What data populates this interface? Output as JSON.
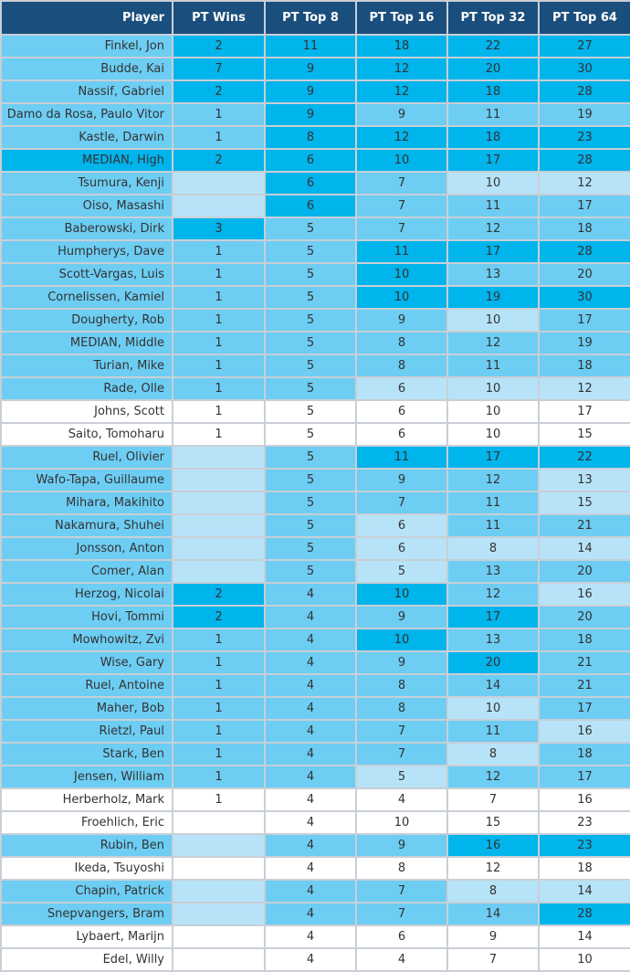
{
  "colors": {
    "header": "#1a4e7c",
    "white": "#ffffff",
    "pale": "#b7e3f8",
    "light": "#6dcdf3",
    "bright": "#00b4ec"
  },
  "header": {
    "player": "Player",
    "wins": "PT Wins",
    "top8": "PT Top 8",
    "top16": "PT Top 16",
    "top32": "PT Top 32",
    "top64": "PT Top 64"
  },
  "rows": [
    {
      "name": "Finkel, Jon",
      "wins": "2",
      "top8": "11",
      "top16": "18",
      "top32": "22",
      "top64": "27",
      "rowlvl": 2,
      "lv": [
        3,
        3,
        3,
        3,
        3
      ]
    },
    {
      "name": "Budde, Kai",
      "wins": "7",
      "top8": "9",
      "top16": "12",
      "top32": "20",
      "top64": "30",
      "rowlvl": 2,
      "lv": [
        3,
        3,
        3,
        3,
        3
      ]
    },
    {
      "name": "Nassif, Gabriel",
      "wins": "2",
      "top8": "9",
      "top16": "12",
      "top32": "18",
      "top64": "28",
      "rowlvl": 2,
      "lv": [
        3,
        3,
        3,
        3,
        3
      ]
    },
    {
      "name": "Damo da Rosa, Paulo Vitor",
      "wins": "1",
      "top8": "9",
      "top16": "9",
      "top32": "11",
      "top64": "19",
      "rowlvl": 2,
      "lv": [
        2,
        3,
        2,
        2,
        2
      ]
    },
    {
      "name": "Kastle, Darwin",
      "wins": "1",
      "top8": "8",
      "top16": "12",
      "top32": "18",
      "top64": "23",
      "rowlvl": 2,
      "lv": [
        2,
        3,
        3,
        3,
        3
      ]
    },
    {
      "name": "MEDIAN, High",
      "wins": "2",
      "top8": "6",
      "top16": "10",
      "top32": "17",
      "top64": "28",
      "rowlvl": 3,
      "lv": [
        3,
        3,
        3,
        3,
        3
      ]
    },
    {
      "name": "Tsumura, Kenji",
      "wins": "",
      "top8": "6",
      "top16": "7",
      "top32": "10",
      "top64": "12",
      "rowlvl": 2,
      "lv": [
        1,
        3,
        2,
        1,
        1
      ]
    },
    {
      "name": "Oiso, Masashi",
      "wins": "",
      "top8": "6",
      "top16": "7",
      "top32": "11",
      "top64": "17",
      "rowlvl": 2,
      "lv": [
        1,
        3,
        2,
        2,
        2
      ]
    },
    {
      "name": "Baberowski, Dirk",
      "wins": "3",
      "top8": "5",
      "top16": "7",
      "top32": "12",
      "top64": "18",
      "rowlvl": 2,
      "lv": [
        3,
        2,
        2,
        2,
        2
      ]
    },
    {
      "name": "Humpherys, Dave",
      "wins": "1",
      "top8": "5",
      "top16": "11",
      "top32": "17",
      "top64": "28",
      "rowlvl": 2,
      "lv": [
        2,
        2,
        3,
        3,
        3
      ]
    },
    {
      "name": "Scott-Vargas, Luis",
      "wins": "1",
      "top8": "5",
      "top16": "10",
      "top32": "13",
      "top64": "20",
      "rowlvl": 2,
      "lv": [
        2,
        2,
        3,
        2,
        2
      ]
    },
    {
      "name": "Cornelissen, Kamiel",
      "wins": "1",
      "top8": "5",
      "top16": "10",
      "top32": "19",
      "top64": "30",
      "rowlvl": 2,
      "lv": [
        2,
        2,
        3,
        3,
        3
      ]
    },
    {
      "name": "Dougherty, Rob",
      "wins": "1",
      "top8": "5",
      "top16": "9",
      "top32": "10",
      "top64": "17",
      "rowlvl": 2,
      "lv": [
        2,
        2,
        2,
        1,
        2
      ]
    },
    {
      "name": "MEDIAN, Middle",
      "wins": "1",
      "top8": "5",
      "top16": "8",
      "top32": "12",
      "top64": "19",
      "rowlvl": 2,
      "lv": [
        2,
        2,
        2,
        2,
        2
      ]
    },
    {
      "name": "Turian, Mike",
      "wins": "1",
      "top8": "5",
      "top16": "8",
      "top32": "11",
      "top64": "18",
      "rowlvl": 2,
      "lv": [
        2,
        2,
        2,
        2,
        2
      ]
    },
    {
      "name": "Rade, Olle",
      "wins": "1",
      "top8": "5",
      "top16": "6",
      "top32": "10",
      "top64": "12",
      "rowlvl": 2,
      "lv": [
        2,
        2,
        1,
        1,
        1
      ]
    },
    {
      "name": "Johns, Scott",
      "wins": "1",
      "top8": "5",
      "top16": "6",
      "top32": "10",
      "top64": "17",
      "rowlvl": 0,
      "lv": [
        0,
        0,
        0,
        0,
        0
      ]
    },
    {
      "name": "Saito, Tomoharu",
      "wins": "1",
      "top8": "5",
      "top16": "6",
      "top32": "10",
      "top64": "15",
      "rowlvl": 0,
      "lv": [
        0,
        0,
        0,
        0,
        0
      ]
    },
    {
      "name": "Ruel, Olivier",
      "wins": "",
      "top8": "5",
      "top16": "11",
      "top32": "17",
      "top64": "22",
      "rowlvl": 2,
      "lv": [
        1,
        2,
        3,
        3,
        3
      ]
    },
    {
      "name": "Wafo-Tapa, Guillaume",
      "wins": "",
      "top8": "5",
      "top16": "9",
      "top32": "12",
      "top64": "13",
      "rowlvl": 2,
      "lv": [
        1,
        2,
        2,
        2,
        1
      ]
    },
    {
      "name": "Mihara, Makihito",
      "wins": "",
      "top8": "5",
      "top16": "7",
      "top32": "11",
      "top64": "15",
      "rowlvl": 2,
      "lv": [
        1,
        2,
        2,
        2,
        1
      ]
    },
    {
      "name": "Nakamura, Shuhei",
      "wins": "",
      "top8": "5",
      "top16": "6",
      "top32": "11",
      "top64": "21",
      "rowlvl": 2,
      "lv": [
        1,
        2,
        1,
        2,
        2
      ]
    },
    {
      "name": "Jonsson, Anton",
      "wins": "",
      "top8": "5",
      "top16": "6",
      "top32": "8",
      "top64": "14",
      "rowlvl": 2,
      "lv": [
        1,
        2,
        1,
        1,
        1
      ]
    },
    {
      "name": "Comer, Alan",
      "wins": "",
      "top8": "5",
      "top16": "5",
      "top32": "13",
      "top64": "20",
      "rowlvl": 2,
      "lv": [
        1,
        2,
        1,
        2,
        2
      ]
    },
    {
      "name": "Herzog, Nicolai",
      "wins": "2",
      "top8": "4",
      "top16": "10",
      "top32": "12",
      "top64": "16",
      "rowlvl": 2,
      "lv": [
        3,
        2,
        3,
        2,
        1
      ]
    },
    {
      "name": "Hovi, Tommi",
      "wins": "2",
      "top8": "4",
      "top16": "9",
      "top32": "17",
      "top64": "20",
      "rowlvl": 2,
      "lv": [
        3,
        2,
        2,
        3,
        2
      ]
    },
    {
      "name": "Mowhowitz, Zvi",
      "wins": "1",
      "top8": "4",
      "top16": "10",
      "top32": "13",
      "top64": "18",
      "rowlvl": 2,
      "lv": [
        2,
        2,
        3,
        2,
        2
      ]
    },
    {
      "name": "Wise, Gary",
      "wins": "1",
      "top8": "4",
      "top16": "9",
      "top32": "20",
      "top64": "21",
      "rowlvl": 2,
      "lv": [
        2,
        2,
        2,
        3,
        2
      ]
    },
    {
      "name": "Ruel, Antoine",
      "wins": "1",
      "top8": "4",
      "top16": "8",
      "top32": "14",
      "top64": "21",
      "rowlvl": 2,
      "lv": [
        2,
        2,
        2,
        2,
        2
      ]
    },
    {
      "name": "Maher, Bob",
      "wins": "1",
      "top8": "4",
      "top16": "8",
      "top32": "10",
      "top64": "17",
      "rowlvl": 2,
      "lv": [
        2,
        2,
        2,
        1,
        2
      ]
    },
    {
      "name": "Rietzl, Paul",
      "wins": "1",
      "top8": "4",
      "top16": "7",
      "top32": "11",
      "top64": "16",
      "rowlvl": 2,
      "lv": [
        2,
        2,
        2,
        2,
        1
      ]
    },
    {
      "name": "Stark, Ben",
      "wins": "1",
      "top8": "4",
      "top16": "7",
      "top32": "8",
      "top64": "18",
      "rowlvl": 2,
      "lv": [
        2,
        2,
        2,
        1,
        2
      ]
    },
    {
      "name": "Jensen, William",
      "wins": "1",
      "top8": "4",
      "top16": "5",
      "top32": "12",
      "top64": "17",
      "rowlvl": 2,
      "lv": [
        2,
        2,
        1,
        2,
        2
      ]
    },
    {
      "name": "Herberholz, Mark",
      "wins": "1",
      "top8": "4",
      "top16": "4",
      "top32": "7",
      "top64": "16",
      "rowlvl": 0,
      "lv": [
        0,
        0,
        0,
        0,
        0
      ]
    },
    {
      "name": "Froehlich, Eric",
      "wins": "",
      "top8": "4",
      "top16": "10",
      "top32": "15",
      "top64": "23",
      "rowlvl": 0,
      "lv": [
        0,
        0,
        0,
        0,
        0
      ]
    },
    {
      "name": "Rubin, Ben",
      "wins": "",
      "top8": "4",
      "top16": "9",
      "top32": "16",
      "top64": "23",
      "rowlvl": 2,
      "lv": [
        1,
        2,
        2,
        3,
        3
      ]
    },
    {
      "name": "Ikeda, Tsuyoshi",
      "wins": "",
      "top8": "4",
      "top16": "8",
      "top32": "12",
      "top64": "18",
      "rowlvl": 0,
      "lv": [
        0,
        0,
        0,
        0,
        0
      ]
    },
    {
      "name": "Chapin, Patrick",
      "wins": "",
      "top8": "4",
      "top16": "7",
      "top32": "8",
      "top64": "14",
      "rowlvl": 2,
      "lv": [
        1,
        2,
        2,
        1,
        1
      ]
    },
    {
      "name": "Snepvangers, Bram",
      "wins": "",
      "top8": "4",
      "top16": "7",
      "top32": "14",
      "top64": "28",
      "rowlvl": 2,
      "lv": [
        1,
        2,
        2,
        2,
        3
      ]
    },
    {
      "name": "Lybaert, Marijn",
      "wins": "",
      "top8": "4",
      "top16": "6",
      "top32": "9",
      "top64": "14",
      "rowlvl": 0,
      "lv": [
        0,
        0,
        0,
        0,
        0
      ]
    },
    {
      "name": "Edel, Willy",
      "wins": "",
      "top8": "4",
      "top16": "4",
      "top32": "7",
      "top64": "10",
      "rowlvl": 0,
      "lv": [
        0,
        0,
        0,
        0,
        0
      ]
    }
  ]
}
